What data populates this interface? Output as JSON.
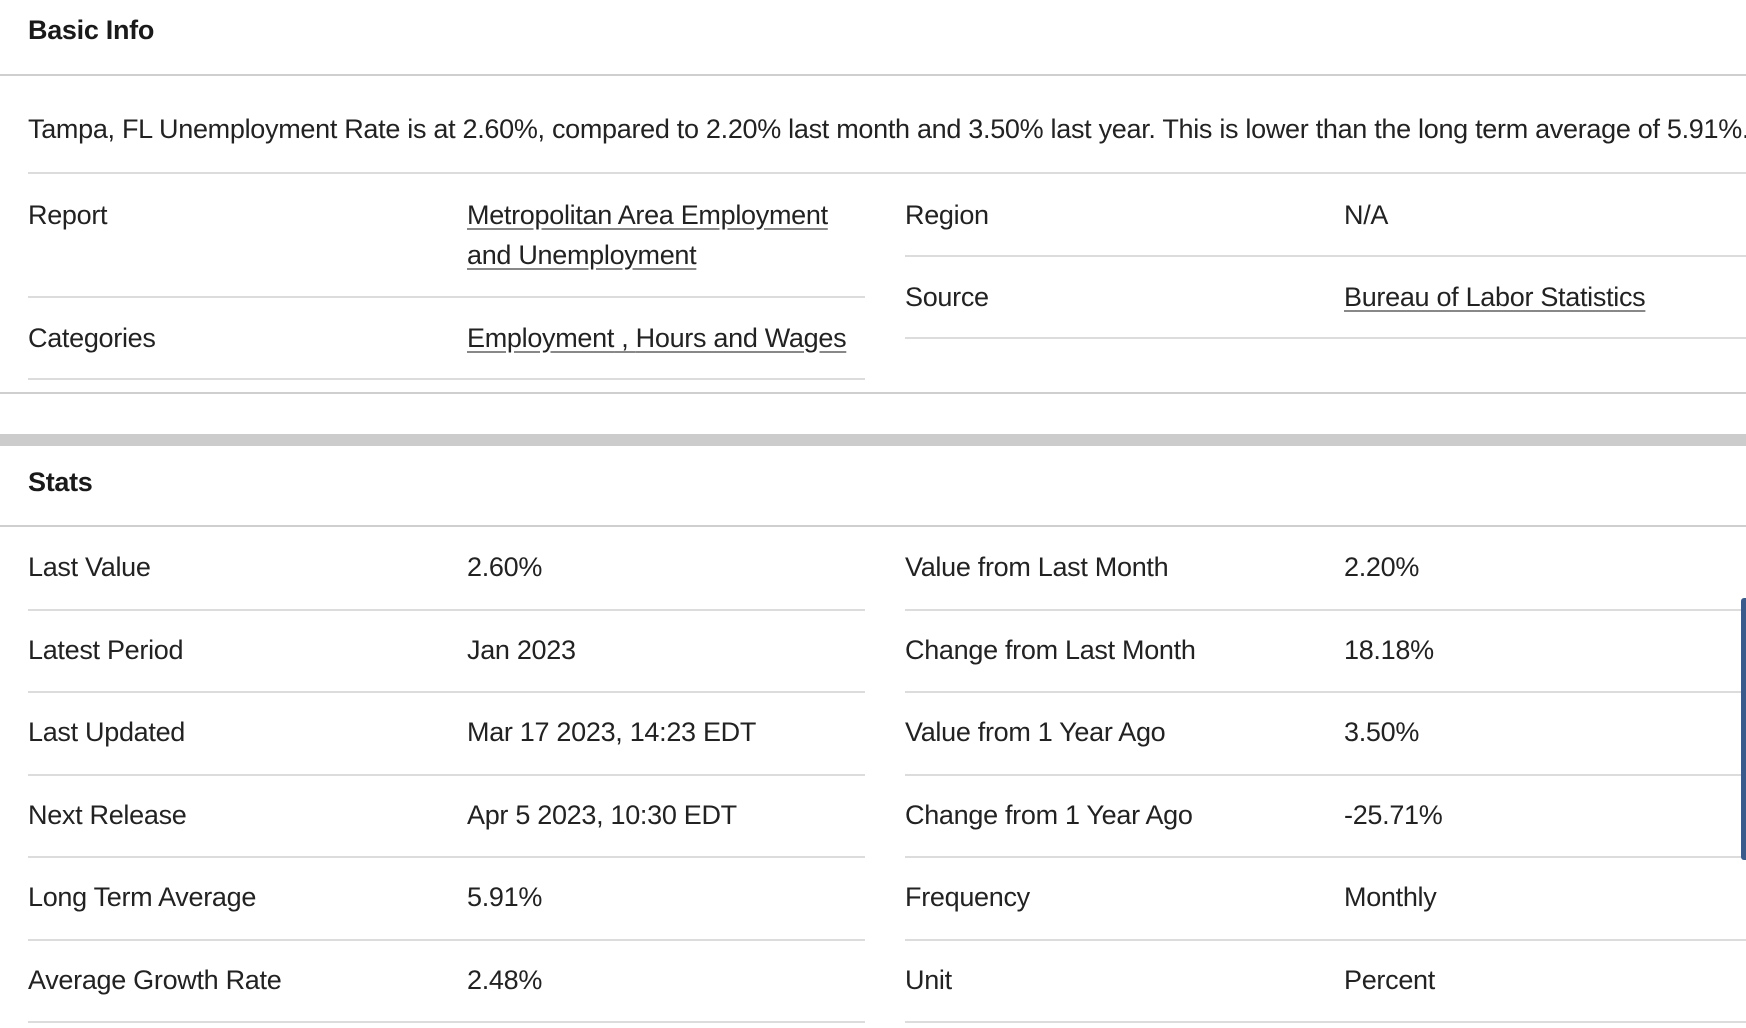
{
  "basic_info": {
    "title": "Basic Info",
    "summary": "Tampa, FL Unemployment Rate is at 2.60%, compared to 2.20% last month and 3.50% last year. This is lower than the long term average of 5.91%.",
    "report_label": "Report",
    "report_value_line1": "Metropolitan Area Employment",
    "report_value_line2": "and Unemployment",
    "categories_label": "Categories",
    "categories_value_a": "Employment",
    "categories_separator": " , ",
    "categories_value_b": "Hours and Wages",
    "region_label": "Region",
    "region_value": "N/A",
    "source_label": "Source",
    "source_value": "Bureau of Labor Statistics"
  },
  "stats": {
    "title": "Stats",
    "left": [
      {
        "label": "Last Value",
        "value": "2.60%"
      },
      {
        "label": "Latest Period",
        "value": "Jan 2023"
      },
      {
        "label": "Last Updated",
        "value": "Mar 17 2023, 14:23 EDT"
      },
      {
        "label": "Next Release",
        "value": "Apr 5 2023, 10:30 EDT"
      },
      {
        "label": "Long Term Average",
        "value": "5.91%"
      },
      {
        "label": "Average Growth Rate",
        "value": "2.48%"
      }
    ],
    "right": [
      {
        "label": "Value from Last Month",
        "value": "2.20%"
      },
      {
        "label": "Change from Last Month",
        "value": "18.18%"
      },
      {
        "label": "Value from 1 Year Ago",
        "value": "3.50%"
      },
      {
        "label": "Change from 1 Year Ago",
        "value": "-25.71%"
      },
      {
        "label": "Frequency",
        "value": "Monthly"
      },
      {
        "label": "Unit",
        "value": "Percent"
      }
    ]
  }
}
